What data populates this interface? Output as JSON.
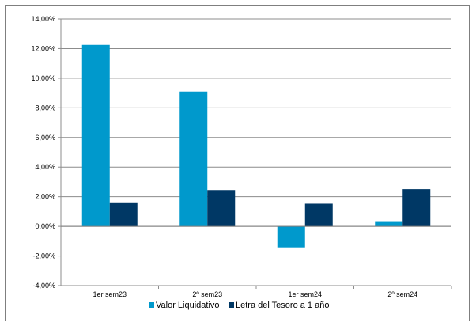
{
  "chart_data": {
    "type": "bar",
    "title": "",
    "xlabel": "",
    "ylabel": "",
    "categories": [
      "1er sem23",
      "2º sem23",
      "1er sem24",
      "2º sem24"
    ],
    "series": [
      {
        "name": "Valor Liquidativo",
        "values": [
          12.25,
          9.1,
          -1.42,
          0.35
        ],
        "color": "#0099cc"
      },
      {
        "name": "Letra del Tesoro a 1 año",
        "values": [
          1.62,
          2.45,
          1.53,
          2.51
        ],
        "color": "#003865"
      }
    ],
    "ylim": [
      -4,
      14
    ],
    "y_ticks": [
      {
        "value": 14,
        "label": "14,00%"
      },
      {
        "value": 12,
        "label": "12,00%"
      },
      {
        "value": 10,
        "label": "10,00%"
      },
      {
        "value": 8,
        "label": "8,00%"
      },
      {
        "value": 6,
        "label": "6,00%"
      },
      {
        "value": 4,
        "label": "4,00%"
      },
      {
        "value": 2,
        "label": "2,00%"
      },
      {
        "value": 0,
        "label": "0,00%"
      },
      {
        "value": -2,
        "label": "-2,00%"
      },
      {
        "value": -4,
        "label": "-4,00%"
      }
    ],
    "grid": true,
    "legend_position": "bottom"
  }
}
